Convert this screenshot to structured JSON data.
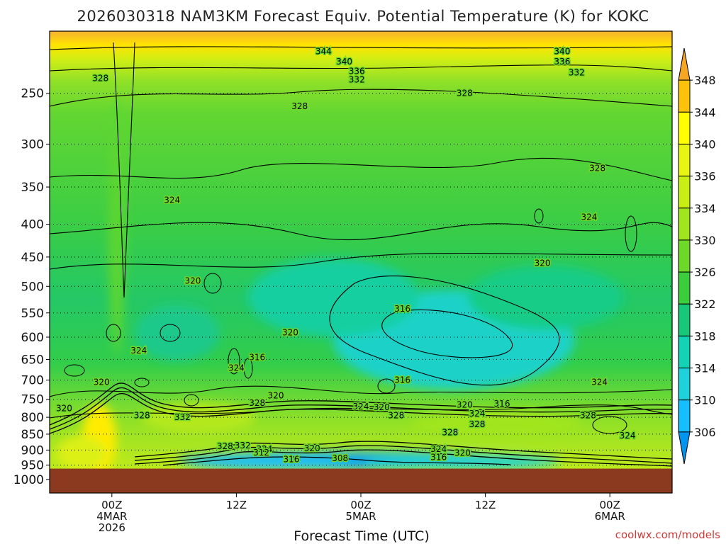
{
  "chart_data": {
    "type": "heatmap",
    "title": "2026030318 NAM3KM Forecast Equiv. Potential Temperature (K) for KOKC",
    "xlabel": "Forecast Time (UTC)",
    "ylabel": "",
    "y_scale": "log-pressure",
    "y_axis": {
      "ticks": [
        250,
        300,
        350,
        400,
        450,
        500,
        550,
        600,
        650,
        700,
        750,
        800,
        850,
        900,
        950,
        1000
      ],
      "range": [
        200,
        1050
      ]
    },
    "x_axis": {
      "ticks": [
        {
          "value": 0,
          "lines": [
            "00Z",
            "4MAR",
            "2026"
          ]
        },
        {
          "value": 12,
          "lines": [
            "12Z"
          ]
        },
        {
          "value": 24,
          "lines": [
            "00Z",
            "5MAR"
          ]
        },
        {
          "value": 36,
          "lines": [
            "12Z"
          ]
        },
        {
          "value": 48,
          "lines": [
            "00Z",
            "6MAR"
          ]
        }
      ],
      "range": [
        -6,
        54
      ]
    },
    "colorbar": {
      "labels": [
        348,
        344,
        340,
        336,
        334,
        330,
        326,
        322,
        318,
        314,
        310,
        306
      ],
      "colors": [
        "#f5a623",
        "#ffc20a",
        "#ffff00",
        "#e6f514",
        "#c8ee14",
        "#a0e51e",
        "#6ed828",
        "#3ccd3c",
        "#18c878",
        "#14d2b4",
        "#1ed2dc",
        "#14beff",
        "#0096f0"
      ]
    },
    "grid": "dotted pressure lines",
    "ground_below_hPa": 962,
    "contour_labels": [
      {
        "t": 20.4,
        "p": 215,
        "v": "344"
      },
      {
        "t": 43.4,
        "p": 215,
        "v": "340"
      },
      {
        "t": 22.4,
        "p": 223,
        "v": "340"
      },
      {
        "t": 43.4,
        "p": 223,
        "v": "336"
      },
      {
        "t": 23.6,
        "p": 231,
        "v": "336"
      },
      {
        "t": 23.6,
        "p": 238,
        "v": "332"
      },
      {
        "t": 44.8,
        "p": 232,
        "v": "332"
      },
      {
        "t": -1.1,
        "p": 237,
        "v": "328"
      },
      {
        "t": 18.1,
        "p": 262,
        "v": "328"
      },
      {
        "t": 34.0,
        "p": 250,
        "v": "328"
      },
      {
        "t": 46.8,
        "p": 327,
        "v": "328"
      },
      {
        "t": 5.8,
        "p": 367,
        "v": "324"
      },
      {
        "t": 46.0,
        "p": 390,
        "v": "324"
      },
      {
        "t": 41.5,
        "p": 460,
        "v": "320"
      },
      {
        "t": 7.8,
        "p": 490,
        "v": "320"
      },
      {
        "t": 28.0,
        "p": 542,
        "v": "316"
      },
      {
        "t": 17.2,
        "p": 590,
        "v": "320"
      },
      {
        "t": 2.6,
        "p": 630,
        "v": "324"
      },
      {
        "t": 12.0,
        "p": 670,
        "v": "324"
      },
      {
        "t": 14.0,
        "p": 645,
        "v": "316"
      },
      {
        "t": 28.0,
        "p": 700,
        "v": "316"
      },
      {
        "t": -1.0,
        "p": 705,
        "v": "320"
      },
      {
        "t": 47.0,
        "p": 705,
        "v": "324"
      },
      {
        "t": 15.8,
        "p": 740,
        "v": "320"
      },
      {
        "t": 14.0,
        "p": 760,
        "v": "328"
      },
      {
        "t": 24.0,
        "p": 770,
        "v": "324"
      },
      {
        "t": 26.0,
        "p": 772,
        "v": "320"
      },
      {
        "t": 37.6,
        "p": 762,
        "v": "316"
      },
      {
        "t": 34.0,
        "p": 765,
        "v": "320"
      },
      {
        "t": -4.6,
        "p": 775,
        "v": "320"
      },
      {
        "t": 2.9,
        "p": 795,
        "v": "328"
      },
      {
        "t": 6.8,
        "p": 800,
        "v": "332"
      },
      {
        "t": 27.4,
        "p": 795,
        "v": "328"
      },
      {
        "t": 35.2,
        "p": 790,
        "v": "324"
      },
      {
        "t": 35.2,
        "p": 820,
        "v": "328"
      },
      {
        "t": 45.9,
        "p": 795,
        "v": "328"
      },
      {
        "t": 32.6,
        "p": 845,
        "v": "328"
      },
      {
        "t": 49.7,
        "p": 855,
        "v": "324"
      },
      {
        "t": 10.9,
        "p": 888,
        "v": "328"
      },
      {
        "t": 12.6,
        "p": 885,
        "v": "332"
      },
      {
        "t": 14.7,
        "p": 897,
        "v": "324"
      },
      {
        "t": 19.3,
        "p": 895,
        "v": "320"
      },
      {
        "t": 14.4,
        "p": 908,
        "v": "312"
      },
      {
        "t": 31.5,
        "p": 897,
        "v": "324"
      },
      {
        "t": 33.8,
        "p": 910,
        "v": "320"
      },
      {
        "t": 17.3,
        "p": 930,
        "v": "316"
      },
      {
        "t": 22.0,
        "p": 927,
        "v": "308"
      },
      {
        "t": 31.5,
        "p": 923,
        "v": "316"
      }
    ]
  },
  "watermark": "coolwx.com/models"
}
